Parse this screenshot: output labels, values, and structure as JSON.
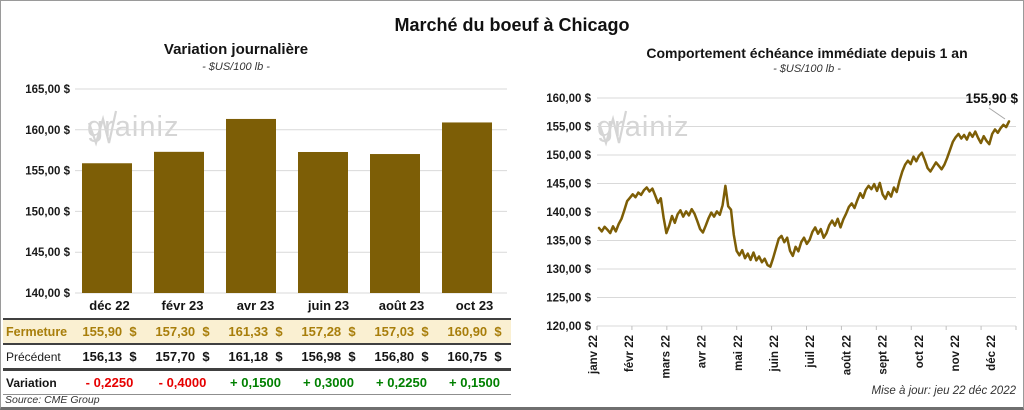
{
  "page": {
    "title": "Marché du boeuf à Chicago"
  },
  "watermark": {
    "part1": "grain",
    "part2": "iz"
  },
  "left_chart": {
    "title": "Variation journalière",
    "subtitle": "- $US/100 lb -"
  },
  "right_chart": {
    "title": "Comportement échéance immédiate depuis 1 an",
    "subtitle": "- $US/100 lb -",
    "annotation": "155,90 $",
    "updated": "Mise à jour: jeu 22 déc 2022"
  },
  "table": {
    "columns": [
      "déc 22",
      "févr 23",
      "avr 23",
      "juin 23",
      "août 23",
      "oct 23"
    ],
    "rows": [
      {
        "label": "Fermeture",
        "values": [
          "155,90  $",
          "157,30  $",
          "161,33  $",
          "157,28  $",
          "157,03  $",
          "160,90  $"
        ]
      },
      {
        "label": "Précédent",
        "values": [
          "156,13  $",
          "157,70  $",
          "161,18  $",
          "156,98  $",
          "156,80  $",
          "160,75  $"
        ]
      },
      {
        "label": "Variation",
        "values": [
          "- 0,2250",
          "- 0,4000",
          "+ 0,1500",
          "+ 0,3000",
          "+ 0,2250",
          "+ 0,1500"
        ]
      }
    ],
    "source": "Source: CME Group"
  },
  "colors": {
    "gold": "#7d5e06",
    "grid": "#d9d9d9",
    "axis_text": "#1a1a1a",
    "fermeture_bg": "#faf0d2",
    "fermeture_text": "#a87e0b",
    "negative": "#e60000",
    "positive": "#008000",
    "watermark": "#d5d5d5"
  },
  "chart_data": [
    {
      "type": "bar",
      "title": "Variation journalière",
      "subtitle": "- $US/100 lb -",
      "categories": [
        "déc 22",
        "févr 23",
        "avr 23",
        "juin 23",
        "août 23",
        "oct 23"
      ],
      "values": [
        155.9,
        157.3,
        161.33,
        157.28,
        157.03,
        160.9
      ],
      "ylabel": "$US/100 lb",
      "ylim": [
        140,
        165
      ],
      "ytick_step": 5,
      "ytick_labels": [
        "165,00 $",
        "160,00 $",
        "155,00 $",
        "150,00 $",
        "145,00 $",
        "140,00 $"
      ],
      "grid": true,
      "bar_color": "#7d5e06"
    },
    {
      "type": "line",
      "title": "Comportement échéance immédiate depuis 1 an",
      "subtitle": "- $US/100 lb -",
      "x_labels": [
        "janv 22",
        "févr 22",
        "mars 22",
        "avr 22",
        "mai 22",
        "juin 22",
        "juil 22",
        "août 22",
        "sept 22",
        "oct 22",
        "nov 22",
        "déc 22"
      ],
      "ylim": [
        120,
        160
      ],
      "ytick_step": 5,
      "ytick_labels": [
        "160,00 $",
        "155,00 $",
        "150,00 $",
        "145,00 $",
        "140,00 $",
        "135,00 $",
        "130,00 $",
        "125,00 $",
        "120,00 $"
      ],
      "grid": true,
      "line_color": "#7d5e06",
      "last_value_label": "155,90 $",
      "values": [
        137.2,
        136.6,
        137.4,
        136.9,
        136.3,
        137.5,
        136.6,
        137.9,
        138.8,
        140.3,
        141.9,
        142.5,
        143.1,
        142.6,
        143.4,
        143.0,
        143.8,
        144.3,
        143.6,
        144.1,
        142.9,
        141.6,
        142.4,
        139.0,
        136.3,
        137.6,
        139.3,
        138.1,
        139.6,
        140.3,
        139.2,
        140.1,
        139.4,
        140.5,
        139.7,
        138.4,
        137.0,
        136.4,
        137.6,
        138.9,
        139.9,
        139.2,
        140.1,
        139.5,
        141.2,
        144.6,
        141.0,
        140.4,
        136.0,
        133.2,
        132.4,
        133.3,
        131.9,
        132.7,
        131.6,
        132.9,
        131.5,
        132.2,
        131.2,
        131.8,
        130.7,
        130.4,
        131.9,
        133.6,
        135.3,
        135.8,
        134.7,
        135.5,
        133.2,
        132.3,
        133.9,
        133.1,
        134.7,
        135.5,
        134.4,
        135.1,
        136.5,
        137.3,
        136.2,
        137.0,
        135.5,
        136.3,
        137.7,
        138.5,
        137.6,
        138.8,
        137.3,
        138.7,
        139.7,
        140.9,
        141.5,
        140.7,
        142.1,
        143.3,
        142.5,
        143.9,
        144.6,
        144.0,
        144.9,
        143.7,
        145.1,
        143.1,
        142.3,
        143.5,
        142.7,
        144.3,
        143.5,
        145.5,
        147.1,
        148.3,
        149.0,
        148.4,
        149.7,
        148.9,
        149.9,
        150.4,
        149.1,
        147.7,
        147.1,
        147.9,
        148.7,
        148.1,
        147.5,
        148.3,
        149.5,
        150.9,
        152.3,
        153.1,
        153.7,
        152.9,
        153.5,
        152.7,
        153.9,
        153.2,
        154.1,
        153.0,
        152.1,
        153.3,
        152.5,
        151.9,
        153.7,
        154.5,
        153.9,
        154.7,
        155.3,
        154.9,
        155.9
      ]
    }
  ]
}
